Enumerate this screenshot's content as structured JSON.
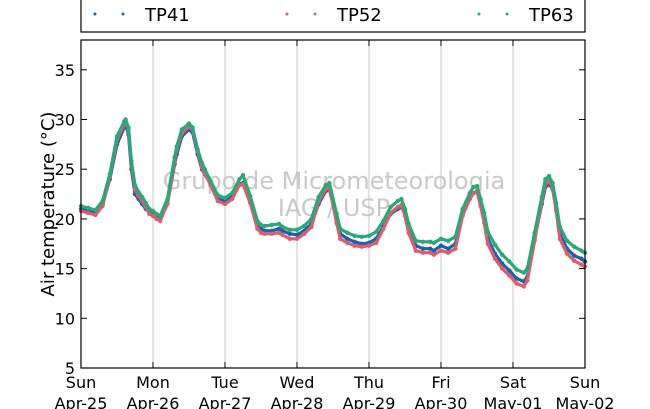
{
  "chart_data": {
    "type": "scatter",
    "title": "",
    "ylabel": "Air temperature (°C)",
    "xlabel": "",
    "ylim": [
      5,
      38
    ],
    "xlim": [
      0,
      7
    ],
    "yticks": [
      5,
      10,
      15,
      20,
      25,
      30,
      35
    ],
    "x_unit": "days since Sun Apr-25 00:00",
    "x_ticks": [
      {
        "day": "Sun",
        "date": "Apr-25"
      },
      {
        "day": "Mon",
        "date": "Apr-26"
      },
      {
        "day": "Tue",
        "date": "Apr-27"
      },
      {
        "day": "Wed",
        "date": "Apr-28"
      },
      {
        "day": "Thu",
        "date": "Apr-29"
      },
      {
        "day": "Fri",
        "date": "Apr-30"
      },
      {
        "day": "Sat",
        "date": "May-01"
      },
      {
        "day": "Sun",
        "date": "May-02"
      }
    ],
    "grid": "vertical",
    "legend_position": "top",
    "watermark": [
      "Grupo de Micrometeorologia",
      "IAG / USP"
    ],
    "series": [
      {
        "name": "TP41",
        "color": "#1f5fa8",
        "x": [
          0,
          0.1,
          0.2,
          0.3,
          0.4,
          0.5,
          0.6,
          0.62,
          0.66,
          0.7,
          0.75,
          0.8,
          0.85,
          0.9,
          0.95,
          1.0,
          1.05,
          1.1,
          1.2,
          1.3,
          1.33,
          1.4,
          1.5,
          1.55,
          1.62,
          1.68,
          1.72,
          1.8,
          1.9,
          2.0,
          2.1,
          2.2,
          2.25,
          2.35,
          2.45,
          2.5,
          2.55,
          2.65,
          2.75,
          2.8,
          2.9,
          3.0,
          3.1,
          3.2,
          3.3,
          3.4,
          3.45,
          3.55,
          3.6,
          3.7,
          3.8,
          3.9,
          4.0,
          4.1,
          4.2,
          4.3,
          4.4,
          4.45,
          4.5,
          4.55,
          4.65,
          4.75,
          4.85,
          4.9,
          5.0,
          5.1,
          5.2,
          5.3,
          5.4,
          5.45,
          5.5,
          5.55,
          5.6,
          5.65,
          5.75,
          5.85,
          5.95,
          6.05,
          6.15,
          6.2,
          6.3,
          6.4,
          6.45,
          6.5,
          6.55,
          6.6,
          6.65,
          6.75,
          6.85,
          6.95,
          7.0
        ],
        "y": [
          21.0,
          20.8,
          20.6,
          21.5,
          24.0,
          27.5,
          29.2,
          29.5,
          28.5,
          25.0,
          22.5,
          22.0,
          21.5,
          21.0,
          20.7,
          20.6,
          20.2,
          20.0,
          21.5,
          25.5,
          26.5,
          28.3,
          29.0,
          28.7,
          26.5,
          25.0,
          24.5,
          23.5,
          22.0,
          21.8,
          22.2,
          23.5,
          23.6,
          22.0,
          19.5,
          19.0,
          18.8,
          18.8,
          19.0,
          18.8,
          18.5,
          18.4,
          18.8,
          19.5,
          21.5,
          22.8,
          23.0,
          20.0,
          18.5,
          18.0,
          17.7,
          17.5,
          17.6,
          18.0,
          19.2,
          20.5,
          21.0,
          21.2,
          20.5,
          19.0,
          17.3,
          17.0,
          17.0,
          16.8,
          17.3,
          17.0,
          17.5,
          20.5,
          22.0,
          22.6,
          22.8,
          21.5,
          20.0,
          18.0,
          16.5,
          15.5,
          14.8,
          14.0,
          13.7,
          14.2,
          18.0,
          21.5,
          23.2,
          23.5,
          23.0,
          21.0,
          18.5,
          17.0,
          16.3,
          16.0,
          15.7
        ]
      },
      {
        "name": "TP52",
        "color": "#d95f6e",
        "x": [
          0,
          0.1,
          0.2,
          0.3,
          0.4,
          0.5,
          0.6,
          0.62,
          0.66,
          0.7,
          0.75,
          0.8,
          0.85,
          0.9,
          0.95,
          1.0,
          1.05,
          1.1,
          1.2,
          1.3,
          1.33,
          1.4,
          1.5,
          1.55,
          1.62,
          1.68,
          1.72,
          1.8,
          1.9,
          2.0,
          2.1,
          2.2,
          2.25,
          2.35,
          2.45,
          2.5,
          2.55,
          2.65,
          2.75,
          2.8,
          2.9,
          3.0,
          3.1,
          3.2,
          3.3,
          3.4,
          3.45,
          3.55,
          3.6,
          3.7,
          3.8,
          3.9,
          4.0,
          4.1,
          4.2,
          4.3,
          4.4,
          4.45,
          4.5,
          4.55,
          4.65,
          4.75,
          4.85,
          4.9,
          5.0,
          5.1,
          5.2,
          5.3,
          5.4,
          5.45,
          5.5,
          5.55,
          5.6,
          5.65,
          5.75,
          5.85,
          5.95,
          6.05,
          6.15,
          6.2,
          6.3,
          6.4,
          6.45,
          6.5,
          6.55,
          6.6,
          6.65,
          6.75,
          6.85,
          6.95,
          7.0
        ],
        "y": [
          20.8,
          20.6,
          20.4,
          21.3,
          24.2,
          28.0,
          29.5,
          29.8,
          29.0,
          25.5,
          23.0,
          22.3,
          21.8,
          21.2,
          20.5,
          20.3,
          20.0,
          19.8,
          21.5,
          25.8,
          27.0,
          28.6,
          29.3,
          29.0,
          26.8,
          25.2,
          24.6,
          23.4,
          21.8,
          21.5,
          22.0,
          23.4,
          23.5,
          21.6,
          19.0,
          18.6,
          18.5,
          18.5,
          18.6,
          18.4,
          18.0,
          18.0,
          18.5,
          19.2,
          21.8,
          23.0,
          23.2,
          19.6,
          18.0,
          17.6,
          17.3,
          17.2,
          17.3,
          17.6,
          19.0,
          20.6,
          21.2,
          21.4,
          20.3,
          18.6,
          16.8,
          16.6,
          16.6,
          16.4,
          16.8,
          16.6,
          17.0,
          20.3,
          22.0,
          22.6,
          22.8,
          21.3,
          19.6,
          17.5,
          16.0,
          15.0,
          14.3,
          13.5,
          13.2,
          13.8,
          17.8,
          21.8,
          23.5,
          23.8,
          23.2,
          20.8,
          18.0,
          16.5,
          15.8,
          15.4,
          15.2
        ]
      },
      {
        "name": "TP63",
        "color": "#2aa877",
        "x": [
          0,
          0.1,
          0.2,
          0.3,
          0.4,
          0.5,
          0.6,
          0.62,
          0.66,
          0.7,
          0.75,
          0.8,
          0.85,
          0.9,
          0.95,
          1.0,
          1.05,
          1.1,
          1.2,
          1.3,
          1.33,
          1.4,
          1.5,
          1.55,
          1.62,
          1.68,
          1.72,
          1.8,
          1.9,
          2.0,
          2.1,
          2.2,
          2.25,
          2.35,
          2.45,
          2.5,
          2.55,
          2.65,
          2.75,
          2.8,
          2.9,
          3.0,
          3.1,
          3.2,
          3.3,
          3.4,
          3.45,
          3.55,
          3.6,
          3.7,
          3.8,
          3.9,
          4.0,
          4.1,
          4.2,
          4.3,
          4.4,
          4.45,
          4.5,
          4.55,
          4.65,
          4.75,
          4.85,
          4.9,
          5.0,
          5.1,
          5.2,
          5.3,
          5.4,
          5.45,
          5.5,
          5.55,
          5.6,
          5.65,
          5.75,
          5.85,
          5.95,
          6.05,
          6.15,
          6.2,
          6.3,
          6.4,
          6.45,
          6.5,
          6.55,
          6.6,
          6.65,
          6.75,
          6.85,
          6.95,
          7.0
        ],
        "y": [
          21.3,
          21.1,
          20.9,
          21.8,
          24.5,
          28.3,
          29.8,
          30.0,
          29.2,
          25.8,
          23.4,
          22.7,
          22.2,
          21.6,
          21.0,
          20.8,
          20.5,
          20.3,
          22.0,
          26.2,
          27.3,
          29.0,
          29.6,
          29.2,
          27.0,
          25.6,
          25.0,
          23.8,
          22.4,
          22.1,
          22.6,
          24.0,
          24.4,
          22.3,
          19.8,
          19.4,
          19.3,
          19.4,
          19.5,
          19.2,
          18.9,
          18.9,
          19.3,
          20.0,
          22.2,
          23.4,
          23.6,
          20.5,
          19.0,
          18.6,
          18.3,
          18.2,
          18.3,
          18.7,
          19.8,
          21.2,
          21.8,
          22.0,
          21.0,
          19.5,
          17.8,
          17.7,
          17.7,
          17.6,
          18.0,
          17.8,
          18.2,
          21.0,
          22.6,
          23.2,
          23.3,
          22.0,
          20.6,
          18.7,
          17.4,
          16.4,
          15.7,
          14.9,
          14.6,
          15.0,
          18.6,
          22.2,
          24.0,
          24.3,
          23.6,
          21.6,
          19.2,
          17.8,
          17.2,
          16.8,
          16.6
        ]
      }
    ]
  }
}
